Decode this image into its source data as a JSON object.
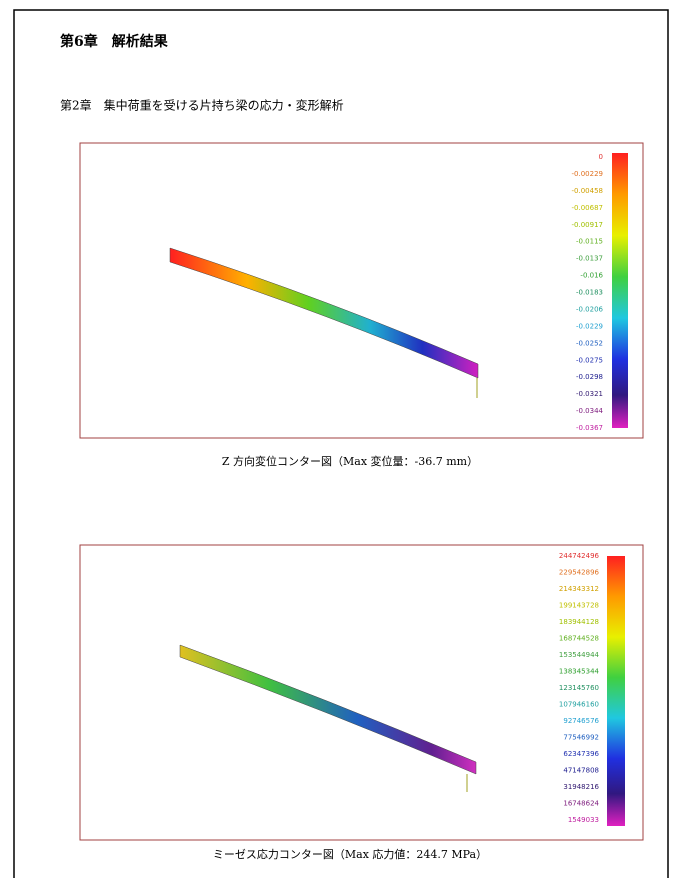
{
  "header": {
    "chapter": "第6章　解析結果",
    "section": "第2章　集中荷重を受ける片持ち梁の応力・変形解析"
  },
  "figures": [
    {
      "legend": [
        "0",
        "-0.00229",
        "-0.00458",
        "-0.00687",
        "-0.00917",
        "-0.0115",
        "-0.0137",
        "-0.016",
        "-0.0183",
        "-0.0206",
        "-0.0229",
        "-0.0252",
        "-0.0275",
        "-0.0298",
        "-0.0321",
        "-0.0344",
        "-0.0367"
      ],
      "caption": "Z 方向変位コンター図（Max 変位量：-36.7 mm）"
    },
    {
      "legend": [
        "244742496",
        "229542896",
        "214343312",
        "199143728",
        "183944128",
        "168744528",
        "153544944",
        "138345344",
        "123145760",
        "107946160",
        "92746576",
        "77546992",
        "62347396",
        "47147808",
        "31948216",
        "16748624",
        "1549033"
      ],
      "caption": "ミーゼス応力コンター図（Max 応力値：244.7 MPa）"
    }
  ]
}
